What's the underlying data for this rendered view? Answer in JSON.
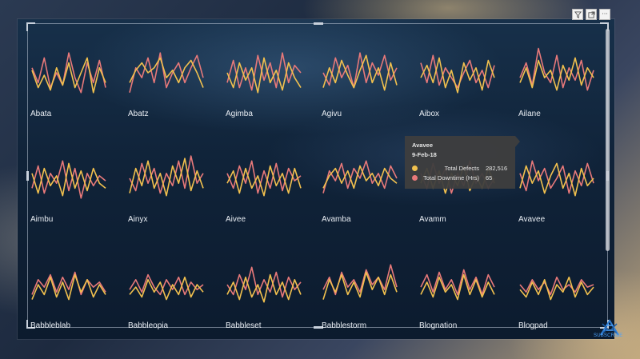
{
  "toolbar": {
    "filter_icon": "filter-icon",
    "focus_icon": "focus-mode-icon",
    "more_icon": "more-options-icon",
    "more_label": "···"
  },
  "colors": {
    "defects": "#f2c14e",
    "downtime": "#e8797a",
    "label": "#e8edf3"
  },
  "tooltip": {
    "title": "Avavee",
    "date": "9-Feb-18",
    "rows": [
      {
        "label": "Total Defects",
        "value": "282,516",
        "color": "#f2c14e"
      },
      {
        "label": "Total Downtime (Hrs)",
        "value": "65",
        "color": "#e8797a"
      }
    ]
  },
  "logo": {
    "icon": "enterprise-dna-logo-icon",
    "text": "SUBSCRIBE"
  },
  "chart_data": {
    "type": "line",
    "layout": "small-multiples",
    "columns": 6,
    "series_names": [
      "Total Defects",
      "Total Downtime (Hrs)"
    ],
    "panels": [
      {
        "name": "Abata",
        "defects": [
          0.55,
          0.2,
          0.45,
          0.15,
          0.6,
          0.25,
          0.7,
          0.2,
          0.5,
          0.8,
          0.1,
          0.6,
          0.3
        ],
        "downtime": [
          0.6,
          0.3,
          0.8,
          0.2,
          0.5,
          0.25,
          0.9,
          0.4,
          0.1,
          0.7,
          0.3,
          0.75,
          0.2
        ]
      },
      {
        "name": "Abatz",
        "defects": [
          0.3,
          0.55,
          0.7,
          0.5,
          0.6,
          0.8,
          0.4,
          0.55,
          0.3,
          0.6,
          0.75,
          0.5,
          0.2
        ],
        "downtime": [
          0.1,
          0.6,
          0.4,
          0.8,
          0.3,
          0.9,
          0.2,
          0.5,
          0.7,
          0.3,
          0.6,
          0.85,
          0.4
        ]
      },
      {
        "name": "Agimba",
        "defects": [
          0.5,
          0.2,
          0.7,
          0.35,
          0.6,
          0.1,
          0.8,
          0.3,
          0.55,
          0.15,
          0.7,
          0.4,
          0.2
        ],
        "downtime": [
          0.3,
          0.75,
          0.2,
          0.6,
          0.15,
          0.85,
          0.35,
          0.7,
          0.2,
          0.9,
          0.3,
          0.65,
          0.5
        ]
      },
      {
        "name": "Agivu",
        "defects": [
          0.2,
          0.6,
          0.3,
          0.75,
          0.45,
          0.2,
          0.55,
          0.85,
          0.3,
          0.6,
          0.15,
          0.7,
          0.25
        ],
        "downtime": [
          0.5,
          0.25,
          0.8,
          0.4,
          0.65,
          0.2,
          0.9,
          0.3,
          0.7,
          0.45,
          0.85,
          0.35,
          0.6
        ]
      },
      {
        "name": "Aibox",
        "defects": [
          0.4,
          0.65,
          0.3,
          0.8,
          0.2,
          0.55,
          0.1,
          0.7,
          0.35,
          0.6,
          0.15,
          0.75,
          0.4
        ],
        "downtime": [
          0.7,
          0.3,
          0.85,
          0.25,
          0.6,
          0.4,
          0.2,
          0.5,
          0.75,
          0.3,
          0.55,
          0.2,
          0.65
        ]
      },
      {
        "name": "Ailane",
        "defects": [
          0.3,
          0.6,
          0.2,
          0.75,
          0.4,
          0.55,
          0.15,
          0.65,
          0.35,
          0.8,
          0.25,
          0.6,
          0.4
        ],
        "downtime": [
          0.4,
          0.7,
          0.25,
          0.99,
          0.5,
          0.3,
          0.85,
          0.2,
          0.6,
          0.35,
          0.75,
          0.15,
          0.55
        ]
      },
      {
        "name": "Aimbu",
        "defects": [
          0.6,
          0.2,
          0.7,
          0.35,
          0.55,
          0.15,
          0.8,
          0.3,
          0.65,
          0.25,
          0.7,
          0.4,
          0.3
        ],
        "downtime": [
          0.3,
          0.75,
          0.2,
          0.6,
          0.4,
          0.85,
          0.25,
          0.7,
          0.1,
          0.6,
          0.35,
          0.55,
          0.45
        ]
      },
      {
        "name": "Ainyx",
        "defects": [
          0.2,
          0.7,
          0.35,
          0.85,
          0.3,
          0.6,
          0.15,
          0.75,
          0.4,
          0.9,
          0.25,
          0.65,
          0.3
        ],
        "downtime": [
          0.5,
          0.25,
          0.8,
          0.4,
          0.7,
          0.2,
          0.6,
          0.35,
          0.85,
          0.3,
          0.95,
          0.4,
          0.6
        ]
      },
      {
        "name": "Aivee",
        "defects": [
          0.4,
          0.65,
          0.2,
          0.7,
          0.3,
          0.55,
          0.15,
          0.75,
          0.35,
          0.6,
          0.2,
          0.7,
          0.3
        ],
        "downtime": [
          0.6,
          0.3,
          0.75,
          0.4,
          0.85,
          0.2,
          0.65,
          0.3,
          0.8,
          0.25,
          0.7,
          0.45,
          0.55
        ]
      },
      {
        "name": "Avamba",
        "defects": [
          0.3,
          0.55,
          0.7,
          0.4,
          0.65,
          0.3,
          0.75,
          0.45,
          0.6,
          0.35,
          0.7,
          0.5,
          0.4
        ],
        "downtime": [
          0.2,
          0.65,
          0.45,
          0.8,
          0.3,
          0.7,
          0.5,
          0.85,
          0.4,
          0.6,
          0.3,
          0.75,
          0.5
        ]
      },
      {
        "name": "Avamm",
        "defects": [
          0.4,
          0.7,
          0.3,
          0.65,
          0.2,
          0.6,
          0.35,
          0.75,
          0.25,
          0.55,
          0.3,
          0.7,
          0.4
        ],
        "downtime": [
          0.6,
          0.3,
          0.8,
          0.4,
          0.7,
          0.2,
          0.6,
          0.35,
          0.85,
          0.4,
          0.6,
          0.3,
          0.5
        ]
      },
      {
        "name": "Avavee",
        "defects": [
          0.3,
          0.75,
          0.4,
          0.65,
          0.2,
          0.55,
          0.8,
          0.3,
          0.6,
          0.15,
          0.7,
          0.35,
          0.5
        ],
        "downtime": [
          0.6,
          0.25,
          0.85,
          0.45,
          0.7,
          0.3,
          0.5,
          0.75,
          0.2,
          0.65,
          0.35,
          0.8,
          0.4
        ]
      },
      {
        "name": "Babbleblab",
        "defects": [
          0.2,
          0.5,
          0.3,
          0.65,
          0.25,
          0.55,
          0.2,
          0.7,
          0.35,
          0.6,
          0.25,
          0.5,
          0.3
        ],
        "downtime": [
          0.3,
          0.6,
          0.45,
          0.7,
          0.35,
          0.65,
          0.4,
          0.75,
          0.3,
          0.6,
          0.45,
          0.55,
          0.35
        ]
      },
      {
        "name": "Babbleopia",
        "defects": [
          0.3,
          0.45,
          0.25,
          0.6,
          0.35,
          0.55,
          0.2,
          0.5,
          0.3,
          0.65,
          0.25,
          0.5,
          0.35
        ],
        "downtime": [
          0.4,
          0.6,
          0.35,
          0.7,
          0.45,
          0.3,
          0.6,
          0.4,
          0.65,
          0.3,
          0.55,
          0.4,
          0.5
        ]
      },
      {
        "name": "Babbleset",
        "defects": [
          0.3,
          0.55,
          0.2,
          0.65,
          0.25,
          0.5,
          0.15,
          0.7,
          0.3,
          0.55,
          0.2,
          0.6,
          0.3
        ],
        "downtime": [
          0.5,
          0.3,
          0.7,
          0.4,
          0.85,
          0.3,
          0.6,
          0.35,
          0.75,
          0.25,
          0.65,
          0.4,
          0.55
        ]
      },
      {
        "name": "Babblestorm",
        "defects": [
          0.2,
          0.6,
          0.35,
          0.7,
          0.3,
          0.55,
          0.25,
          0.75,
          0.4,
          0.65,
          0.3,
          0.7,
          0.35
        ],
        "downtime": [
          0.4,
          0.65,
          0.3,
          0.75,
          0.45,
          0.6,
          0.35,
          0.8,
          0.5,
          0.65,
          0.4,
          0.9,
          0.45
        ]
      },
      {
        "name": "Blognation",
        "defects": [
          0.3,
          0.55,
          0.25,
          0.65,
          0.35,
          0.5,
          0.2,
          0.7,
          0.3,
          0.6,
          0.25,
          0.55,
          0.3
        ],
        "downtime": [
          0.45,
          0.7,
          0.35,
          0.75,
          0.4,
          0.6,
          0.3,
          0.8,
          0.4,
          0.65,
          0.3,
          0.7,
          0.45
        ]
      },
      {
        "name": "Blogpad",
        "defects": [
          0.4,
          0.25,
          0.55,
          0.3,
          0.6,
          0.2,
          0.5,
          0.35,
          0.65,
          0.25,
          0.55,
          0.3,
          0.45
        ],
        "downtime": [
          0.5,
          0.35,
          0.6,
          0.4,
          0.55,
          0.3,
          0.65,
          0.4,
          0.5,
          0.35,
          0.6,
          0.45,
          0.5
        ]
      }
    ]
  }
}
